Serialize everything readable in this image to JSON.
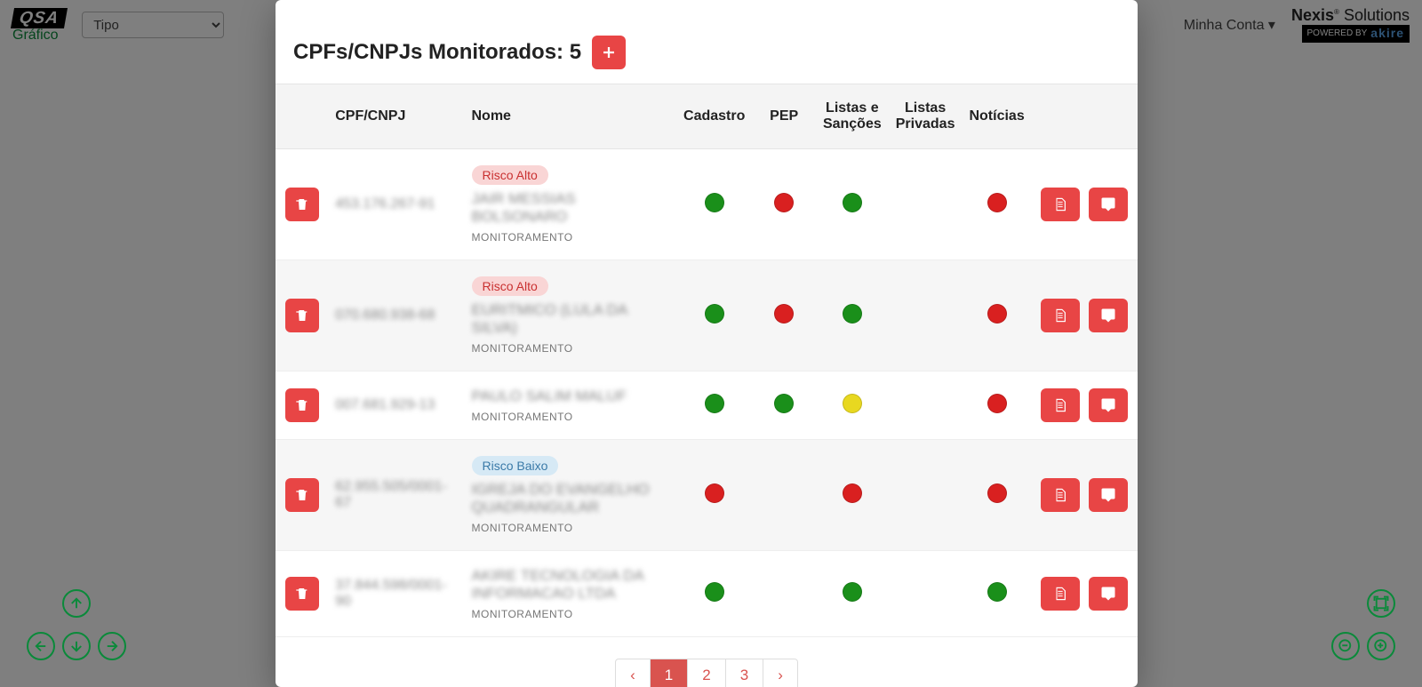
{
  "topbar": {
    "logo": "QSA",
    "logo_sub": "Gráfico",
    "tipo_placeholder": "Tipo",
    "minha_conta": "Minha Conta",
    "nexis_top_bold": "Nexis",
    "nexis_top_rest": "Solutions",
    "powered_by": "POWERED BY",
    "akire": "akire"
  },
  "modal": {
    "title_prefix": "CPFs/CNPJs Monitorados: ",
    "count": "5",
    "add_icon": "plus-icon",
    "columns": {
      "cpf": "CPF/CNPJ",
      "nome": "Nome",
      "cadastro": "Cadastro",
      "pep": "PEP",
      "listas_sancoes": "Listas e Sanções",
      "listas_privadas": "Listas Privadas",
      "noticias": "Notícias"
    },
    "risk_labels": {
      "alto": "Risco Alto",
      "baixo": "Risco Baixo"
    },
    "monitoramento": "MONITORAMENTO",
    "rows": [
      {
        "cpf": "453.176.267-91",
        "nome": "JAIR MESSIAS BOLSONARO",
        "risk": "alto",
        "cadastro": "green",
        "pep": "red",
        "listas_sancoes": "green",
        "listas_privadas": "",
        "noticias": "red"
      },
      {
        "cpf": "070.680.938-68",
        "nome": "EURITMICO (LULA DA SILVA)",
        "risk": "alto",
        "cadastro": "green",
        "pep": "red",
        "listas_sancoes": "green",
        "listas_privadas": "",
        "noticias": "red"
      },
      {
        "cpf": "007.681.929-13",
        "nome": "PAULO SALIM MALUF",
        "risk": "",
        "cadastro": "green",
        "pep": "green",
        "listas_sancoes": "yellow",
        "listas_privadas": "",
        "noticias": "red"
      },
      {
        "cpf": "62.955.505/0001-67",
        "nome": "IGREJA DO EVANGELHO QUADRANGULAR",
        "risk": "baixo",
        "cadastro": "red",
        "pep": "",
        "listas_sancoes": "red",
        "listas_privadas": "",
        "noticias": "red"
      },
      {
        "cpf": "37.844.598/0001-90",
        "nome": "AKIRE TECNOLOGIA DA INFORMACAO LTDA",
        "risk": "",
        "cadastro": "green",
        "pep": "",
        "listas_sancoes": "green",
        "listas_privadas": "",
        "noticias": "green"
      }
    ],
    "pagination": {
      "prev": "‹",
      "pages": [
        "1",
        "2",
        "3"
      ],
      "next": "›",
      "active": "1"
    }
  },
  "colors": {
    "green": "#1a8f1a",
    "red": "#d92020",
    "yellow": "#e8d820",
    "accent": "#e84545",
    "accent_dark": "#d9534f",
    "nav_green": "#0a8a3a"
  }
}
